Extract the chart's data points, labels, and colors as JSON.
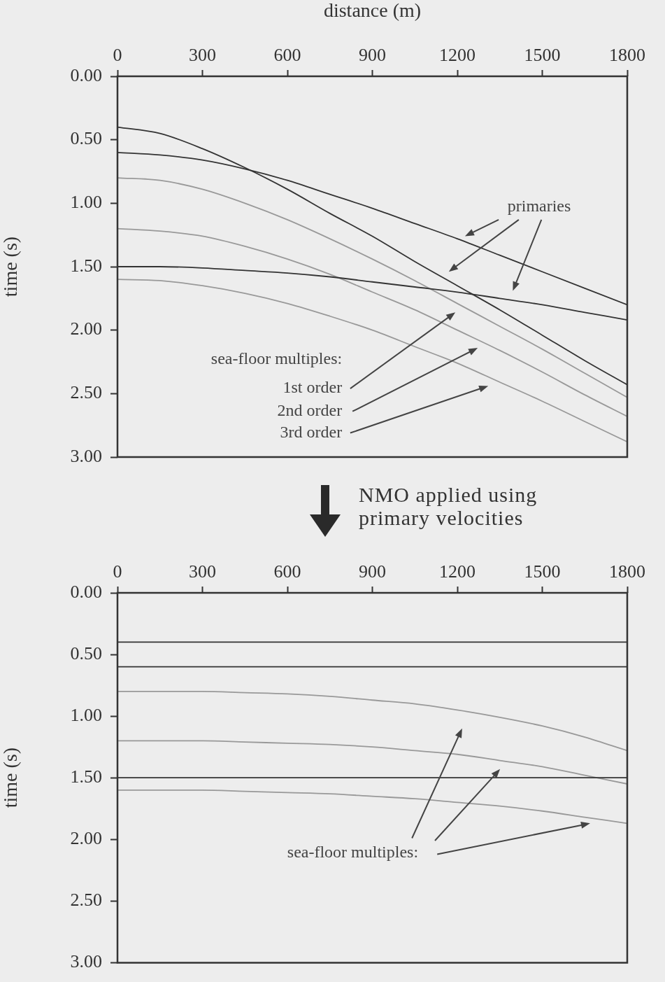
{
  "chart_data": [
    {
      "type": "line",
      "xlabel": "distance (m)",
      "ylabel": "time (s)",
      "xlim": [
        0,
        1800
      ],
      "xticks": [
        0,
        300,
        600,
        900,
        1200,
        1500,
        1800
      ],
      "ylim": [
        3,
        0
      ],
      "yticks": [
        {
          "value": 0,
          "label": "0.00"
        },
        {
          "value": 0.5,
          "label": "0.50"
        },
        {
          "value": 1,
          "label": "1.00"
        },
        {
          "value": 1.5,
          "label": "1.50"
        },
        {
          "value": 2,
          "label": "2.00"
        },
        {
          "value": 2.5,
          "label": "2.50"
        },
        {
          "value": 3,
          "label": "3.00"
        }
      ],
      "marker": "none",
      "x": [
        0,
        150,
        300,
        450,
        600,
        750,
        900,
        1050,
        1200,
        1350,
        1500,
        1650,
        1800
      ],
      "series": [
        {
          "color": "#333333",
          "values": [
            0.4,
            0.45,
            0.57,
            0.72,
            0.89,
            1.08,
            1.26,
            1.46,
            1.65,
            1.84,
            2.04,
            2.24,
            2.43
          ]
        },
        {
          "color": "#333333",
          "values": [
            0.6,
            0.62,
            0.66,
            0.73,
            0.82,
            0.93,
            1.04,
            1.16,
            1.28,
            1.41,
            1.54,
            1.67,
            1.8
          ]
        },
        {
          "color": "#333333",
          "values": [
            1.5,
            1.5,
            1.51,
            1.53,
            1.55,
            1.58,
            1.62,
            1.66,
            1.7,
            1.75,
            1.8,
            1.86,
            1.92
          ]
        },
        {
          "color": "#999999",
          "values": [
            0.8,
            0.82,
            0.89,
            1.0,
            1.13,
            1.28,
            1.44,
            1.61,
            1.79,
            1.97,
            2.15,
            2.34,
            2.53
          ]
        },
        {
          "color": "#999999",
          "values": [
            1.2,
            1.22,
            1.26,
            1.34,
            1.44,
            1.56,
            1.7,
            1.84,
            2.0,
            2.16,
            2.33,
            2.51,
            2.68
          ]
        },
        {
          "color": "#999999",
          "values": [
            1.6,
            1.61,
            1.65,
            1.71,
            1.79,
            1.89,
            2.0,
            2.13,
            2.26,
            2.41,
            2.56,
            2.72,
            2.88
          ]
        }
      ],
      "annotations": [
        "primaries",
        "sea-floor multiples:",
        "1st order",
        "2nd order",
        "3rd order"
      ]
    },
    {
      "type": "line",
      "title": "NMO applied using primary velocities",
      "ylabel": "time (s)",
      "xlim": [
        0,
        1800
      ],
      "xticks": [
        0,
        300,
        600,
        900,
        1200,
        1500,
        1800
      ],
      "ylim": [
        3,
        0
      ],
      "yticks": [
        {
          "value": 0,
          "label": "0.00"
        },
        {
          "value": 0.5,
          "label": "0.50"
        },
        {
          "value": 1,
          "label": "1.00"
        },
        {
          "value": 1.5,
          "label": "1.50"
        },
        {
          "value": 2,
          "label": "2.00"
        },
        {
          "value": 2.5,
          "label": "2.50"
        },
        {
          "value": 3,
          "label": "3.00"
        }
      ],
      "marker": "none",
      "x": [
        0,
        150,
        300,
        450,
        600,
        750,
        900,
        1050,
        1200,
        1350,
        1500,
        1650,
        1800
      ],
      "series": [
        {
          "color": "#333333",
          "values": [
            0.4,
            0.4,
            0.4,
            0.4,
            0.4,
            0.4,
            0.4,
            0.4,
            0.4,
            0.4,
            0.4,
            0.4,
            0.4
          ]
        },
        {
          "color": "#333333",
          "values": [
            0.6,
            0.6,
            0.6,
            0.6,
            0.6,
            0.6,
            0.6,
            0.6,
            0.6,
            0.6,
            0.6,
            0.6,
            0.6
          ]
        },
        {
          "color": "#333333",
          "values": [
            1.5,
            1.5,
            1.5,
            1.5,
            1.5,
            1.5,
            1.5,
            1.5,
            1.5,
            1.5,
            1.5,
            1.5,
            1.5
          ]
        },
        {
          "color": "#999999",
          "values": [
            0.8,
            0.8,
            0.8,
            0.81,
            0.82,
            0.84,
            0.87,
            0.9,
            0.95,
            1.01,
            1.08,
            1.17,
            1.28
          ]
        },
        {
          "color": "#999999",
          "values": [
            1.2,
            1.2,
            1.2,
            1.21,
            1.22,
            1.23,
            1.25,
            1.28,
            1.31,
            1.36,
            1.41,
            1.48,
            1.55
          ]
        },
        {
          "color": "#999999",
          "values": [
            1.6,
            1.6,
            1.6,
            1.61,
            1.62,
            1.63,
            1.65,
            1.67,
            1.7,
            1.73,
            1.77,
            1.82,
            1.87
          ]
        }
      ],
      "annotations": [
        "sea-floor multiples:"
      ]
    }
  ]
}
